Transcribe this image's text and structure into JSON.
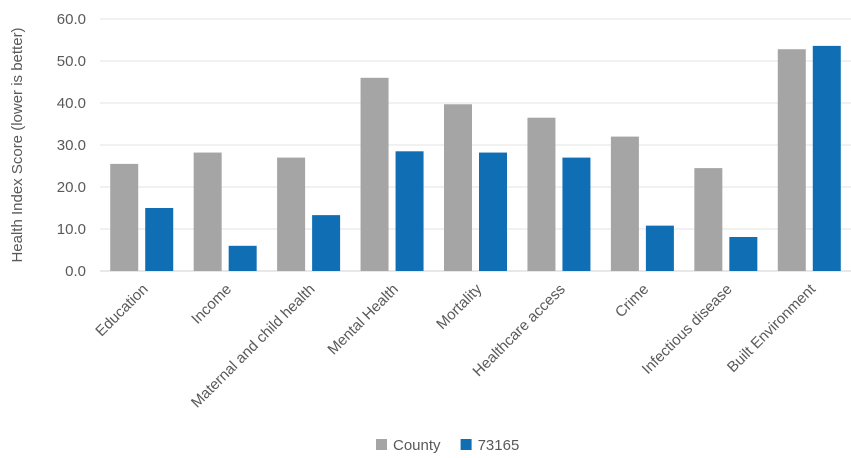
{
  "chart_data": {
    "type": "bar",
    "title": "",
    "xlabel": "",
    "ylabel": "Health Index Score (lower is better)",
    "ylim": [
      0,
      60
    ],
    "ytick_step": 10,
    "ytick_labels": [
      "0.0",
      "10.0",
      "20.0",
      "30.0",
      "40.0",
      "50.0",
      "60.0"
    ],
    "grid": true,
    "legend_position": "bottom",
    "categories": [
      "Education",
      "Income",
      "Maternal and child health",
      "Mental Health",
      "Mortality",
      "Healthcare access",
      "Crime",
      "Infectious disease",
      "Built Environment"
    ],
    "series": [
      {
        "name": "County",
        "color": "#a5a5a5",
        "values": [
          25.5,
          28.2,
          27.0,
          46.0,
          39.7,
          36.5,
          32.0,
          24.5,
          52.8
        ]
      },
      {
        "name": "73165",
        "color": "#0f6eb4",
        "values": [
          15.0,
          6.0,
          13.3,
          28.5,
          28.2,
          27.0,
          10.8,
          8.1,
          53.6
        ]
      }
    ]
  }
}
